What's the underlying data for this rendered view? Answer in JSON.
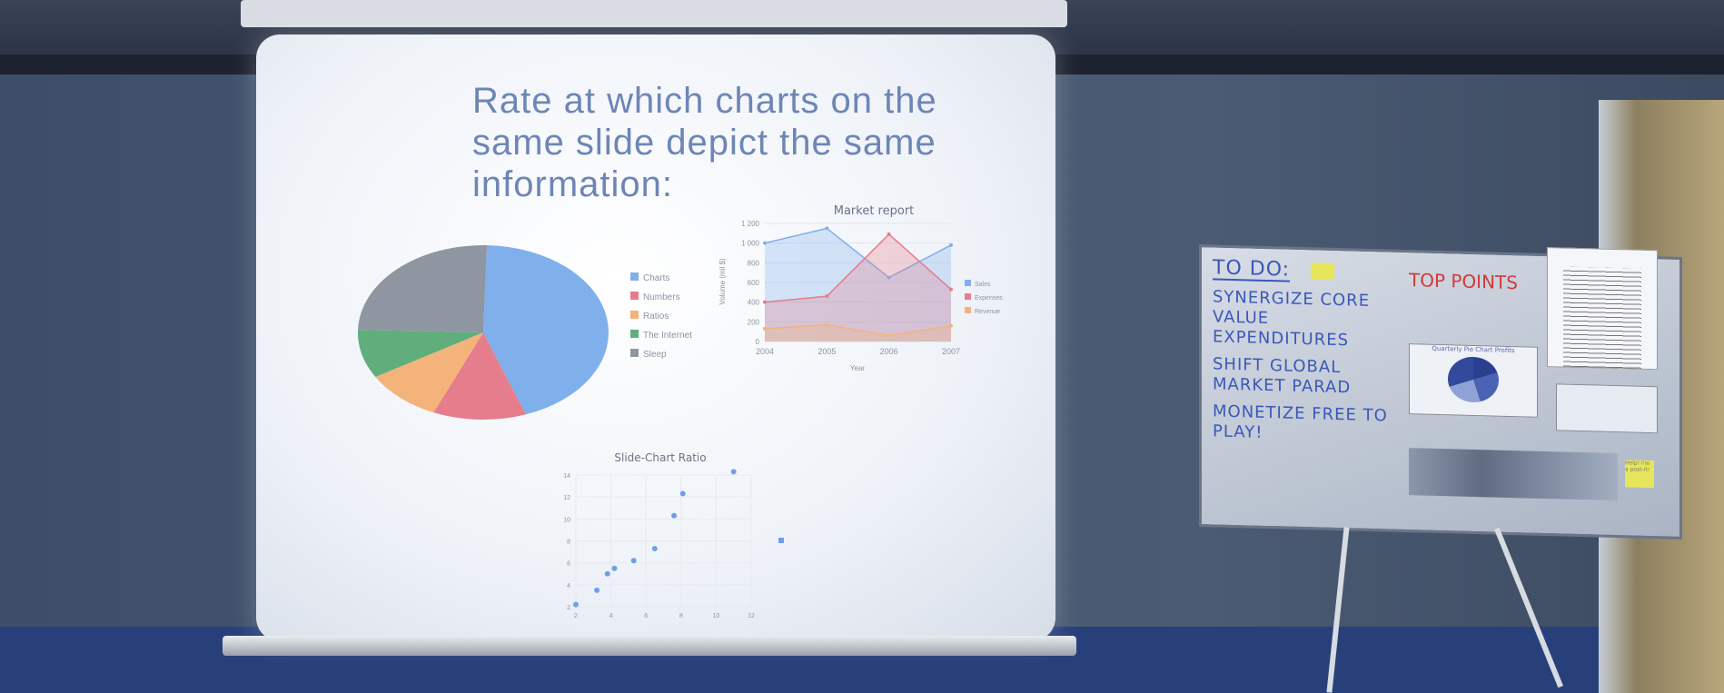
{
  "slide": {
    "title": "Rate at which charts on the same slide depict the same information:"
  },
  "chart_data": [
    {
      "type": "pie",
      "categories": [
        "Charts",
        "Numbers",
        "Ratios",
        "The Internet",
        "Sleep"
      ],
      "values": [
        44,
        12,
        10,
        9,
        25
      ],
      "colors": [
        "#7fb0ec",
        "#e57d8c",
        "#f3b37a",
        "#5fae7c",
        "#8e96a2"
      ],
      "legend": "right"
    },
    {
      "type": "area",
      "title": "Market report",
      "xlabel": "Year",
      "ylabel": "Volume (mil $)",
      "categories": [
        "2004",
        "2005",
        "2006",
        "2007"
      ],
      "ylim": [
        0,
        1200
      ],
      "yticks": [
        "0",
        "200",
        "400",
        "600",
        "800",
        "1 000",
        "1 200"
      ],
      "series": [
        {
          "name": "Sales",
          "values": [
            1000,
            1150,
            650,
            980
          ],
          "color": "#7fb0ec"
        },
        {
          "name": "Expenses",
          "values": [
            400,
            460,
            1090,
            530
          ],
          "color": "#e57d8c"
        },
        {
          "name": "Revenue",
          "values": [
            130,
            170,
            60,
            160
          ],
          "color": "#f3b37a"
        }
      ],
      "legend": "right",
      "grid": true
    },
    {
      "type": "scatter",
      "title": "Slide-Chart Ratio",
      "xlim": [
        2,
        12
      ],
      "ylim": [
        2,
        14
      ],
      "xticks": [
        "2",
        "4",
        "6",
        "8",
        "10",
        "12"
      ],
      "yticks": [
        "2",
        "4",
        "6",
        "8",
        "10",
        "12",
        "14"
      ],
      "x": [
        2,
        3.2,
        3.8,
        4.2,
        5.3,
        6.5,
        7.6,
        8.1,
        11
      ],
      "y": [
        2.2,
        3.5,
        5,
        5.5,
        6.2,
        7.3,
        10.3,
        12.3,
        14.3
      ],
      "color": "#6f9fe6",
      "grid": true
    }
  ],
  "whiteboard": {
    "heading": "TO DO:",
    "items": [
      "SYNERGIZE CORE VALUE EXPENDITURES",
      "SHIFT GLOBAL MARKET PARAD",
      "MONETIZE FREE TO PLAY!"
    ],
    "sign": "TOP POINTS",
    "pinned_chart_title": "Quarterly Pie Chart Profits",
    "sticky_note": "Help! I'm a post-it!"
  }
}
